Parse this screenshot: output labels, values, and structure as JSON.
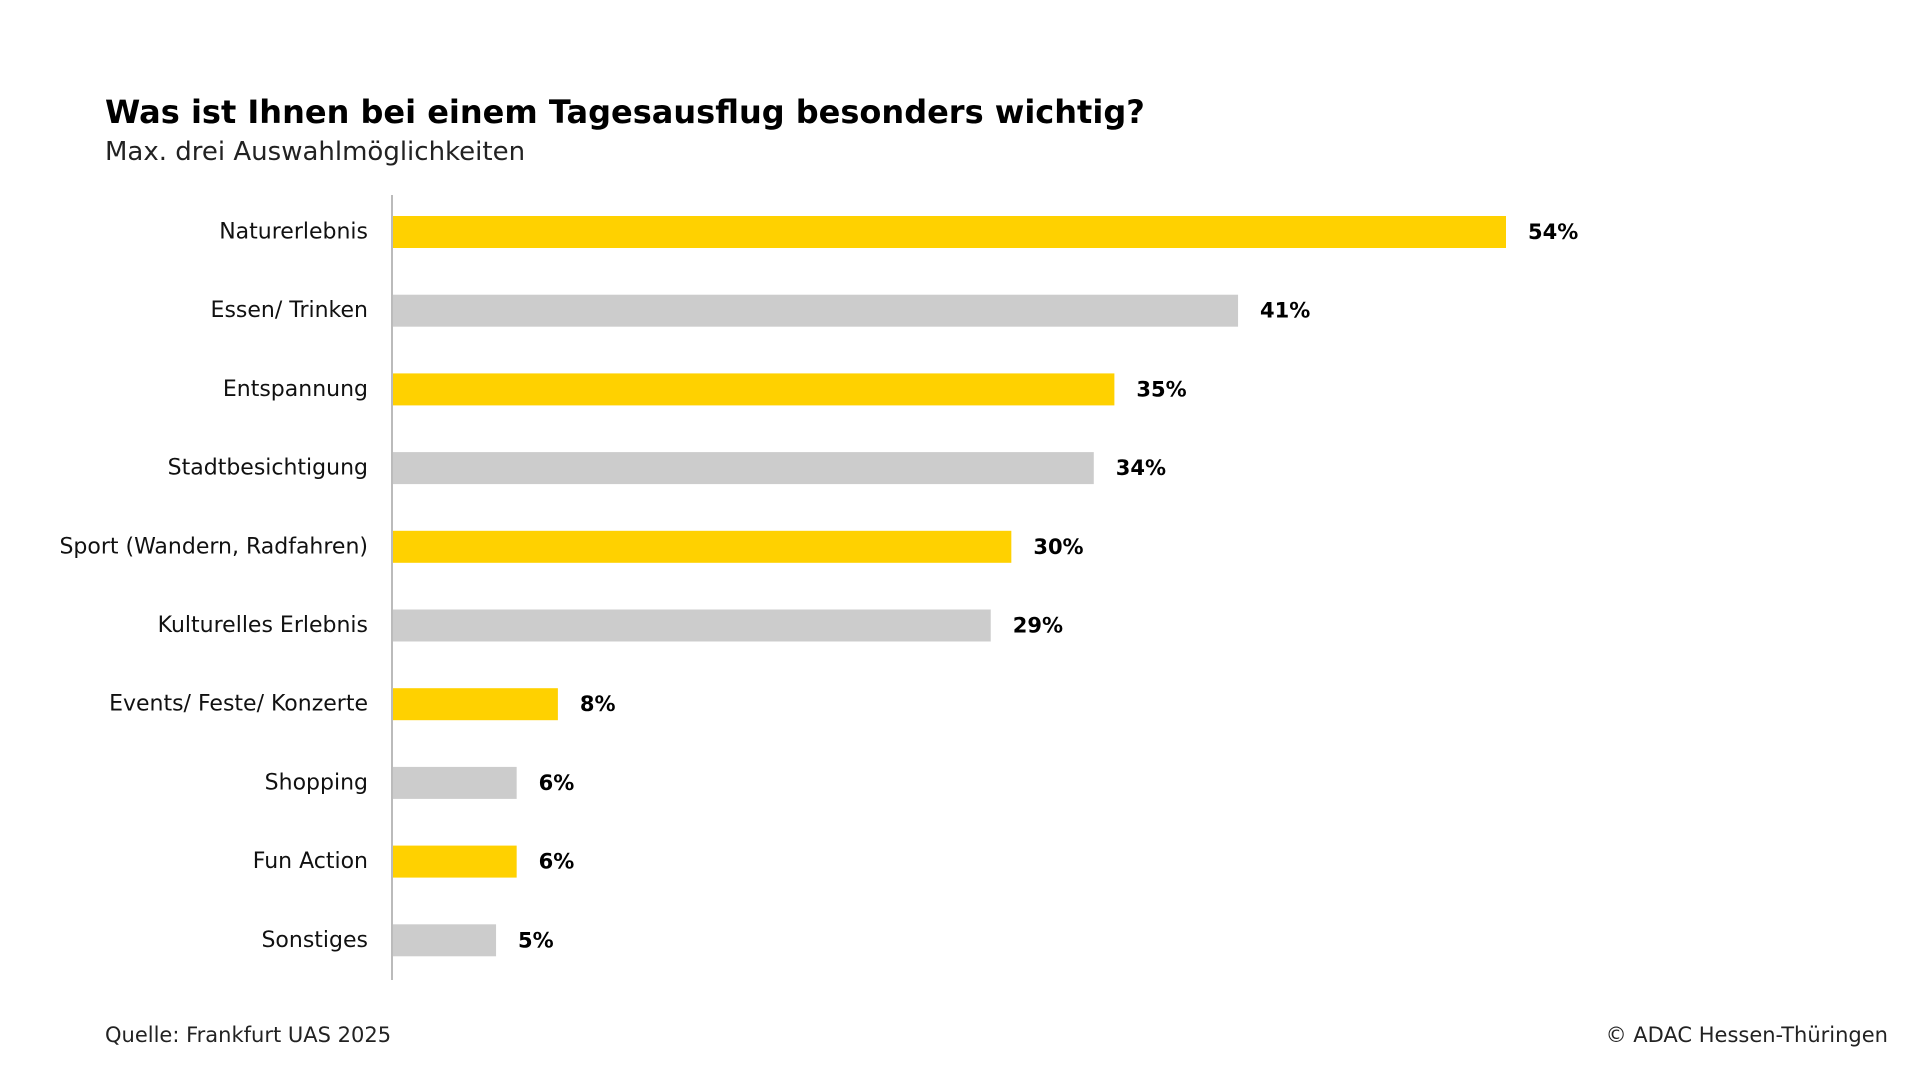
{
  "chart_data": {
    "type": "bar",
    "orientation": "horizontal",
    "title": "Was ist Ihnen bei einem Tagesausflug besonders wichtig?",
    "subtitle": "Max. drei Auswahlmöglichkeiten",
    "categories": [
      "Naturerlebnis",
      "Essen/ Trinken",
      "Entspannung",
      "Stadtbesichtigung",
      "Sport (Wandern, Radfahren)",
      "Kulturelles Erlebnis",
      "Events/ Feste/ Konzerte",
      "Shopping",
      "Fun Action",
      "Sonstiges"
    ],
    "values": [
      54,
      41,
      35,
      34,
      30,
      29,
      8,
      6,
      6,
      5
    ],
    "value_labels": [
      "54%",
      "41%",
      "35%",
      "34%",
      "30%",
      "29%",
      "8%",
      "6%",
      "6%",
      "5%"
    ],
    "unit": "%",
    "xlim": [
      0,
      60
    ],
    "grid": false,
    "colors": [
      "#FFD100",
      "#CCCCCC"
    ],
    "axis_color": "#BBBBBB"
  },
  "footer": {
    "source": "Quelle: Frankfurt UAS 2025",
    "copyright": "© ADAC Hessen-Thüringen"
  }
}
